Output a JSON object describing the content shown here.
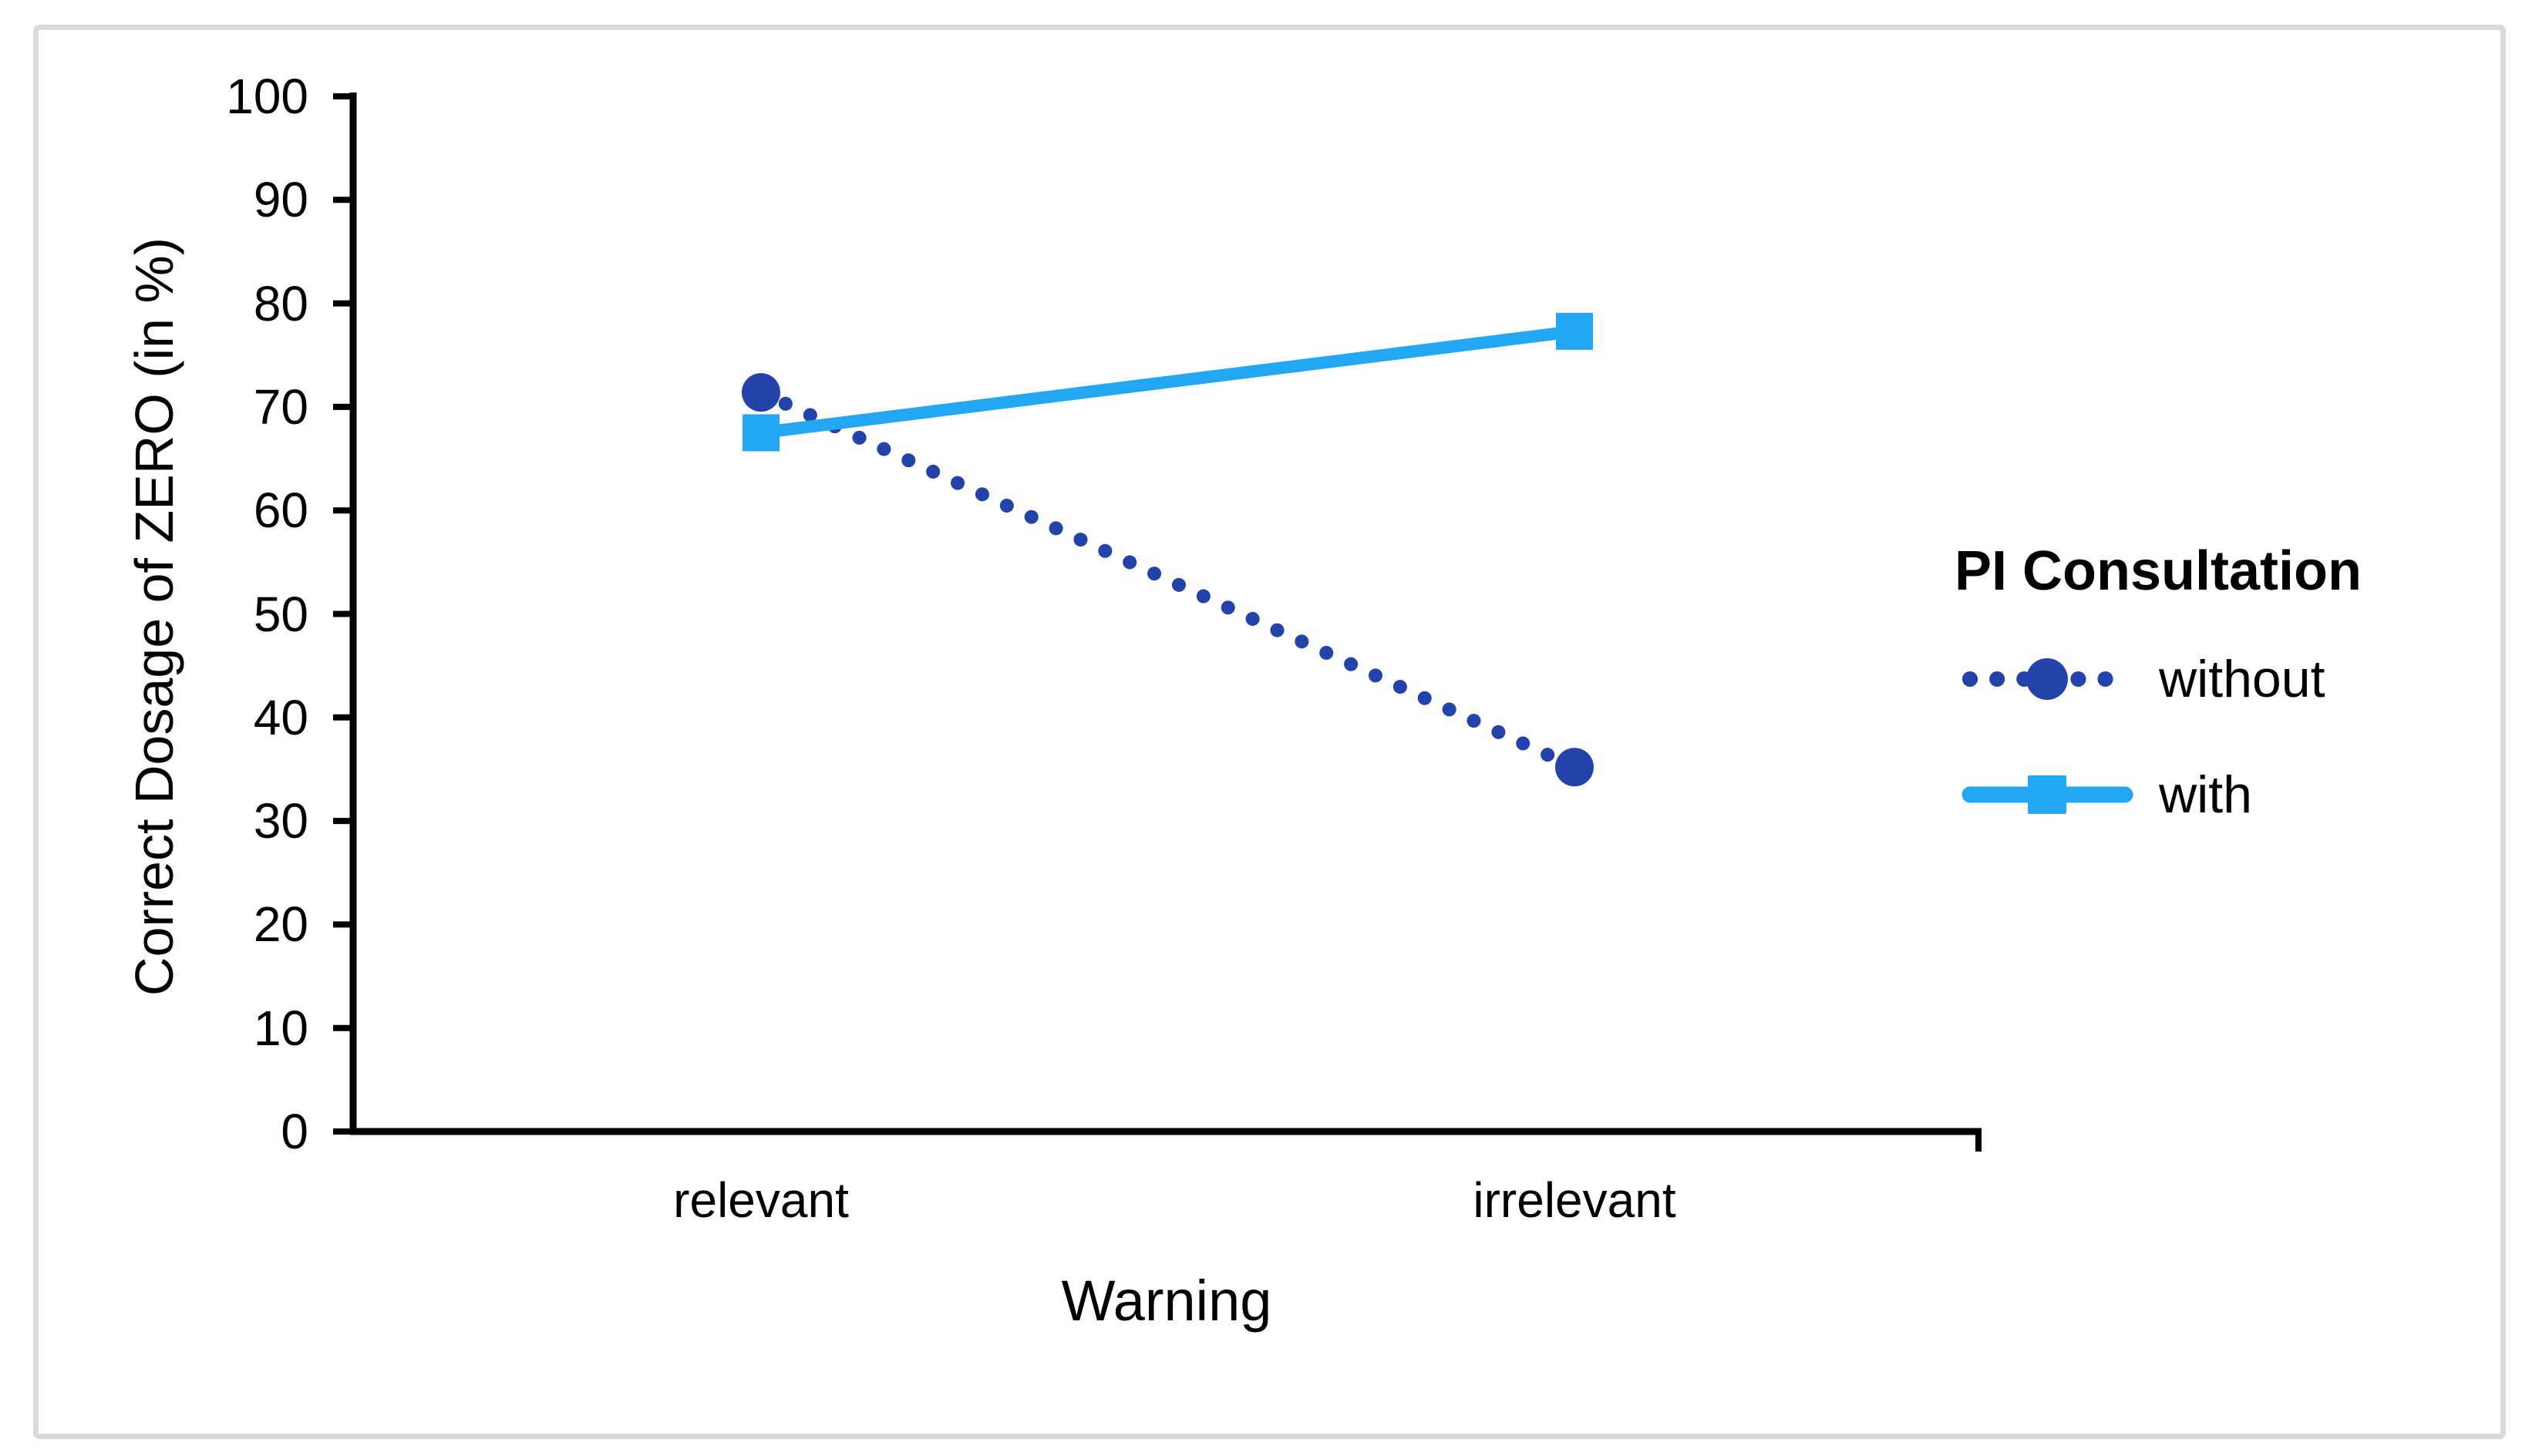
{
  "figure": {
    "background": "#ffffff",
    "border_color": "#d9d9d9"
  },
  "chart_data": {
    "type": "line",
    "categories": [
      "relevant",
      "irrelevant"
    ],
    "series": [
      {
        "name": "without",
        "values": [
          71.4,
          35.2
        ],
        "color": "#2343aa",
        "line_style": "dotted",
        "marker": "circle"
      },
      {
        "name": "with",
        "values": [
          67.5,
          77.3
        ],
        "color": "#22a7f2",
        "line_style": "solid",
        "marker": "square"
      }
    ],
    "title": "",
    "xlabel": "Warning",
    "ylabel": "Correct Dosage of ZERO (in %)",
    "ylim": [
      0,
      100
    ],
    "yticks": [
      "0",
      "10",
      "20",
      "30",
      "40",
      "50",
      "60",
      "70",
      "80",
      "90",
      "100"
    ],
    "grid": false,
    "axis_color": "#000000",
    "legend": {
      "title": "PI Consultation",
      "position": "right",
      "items": [
        "without",
        "with"
      ]
    }
  }
}
